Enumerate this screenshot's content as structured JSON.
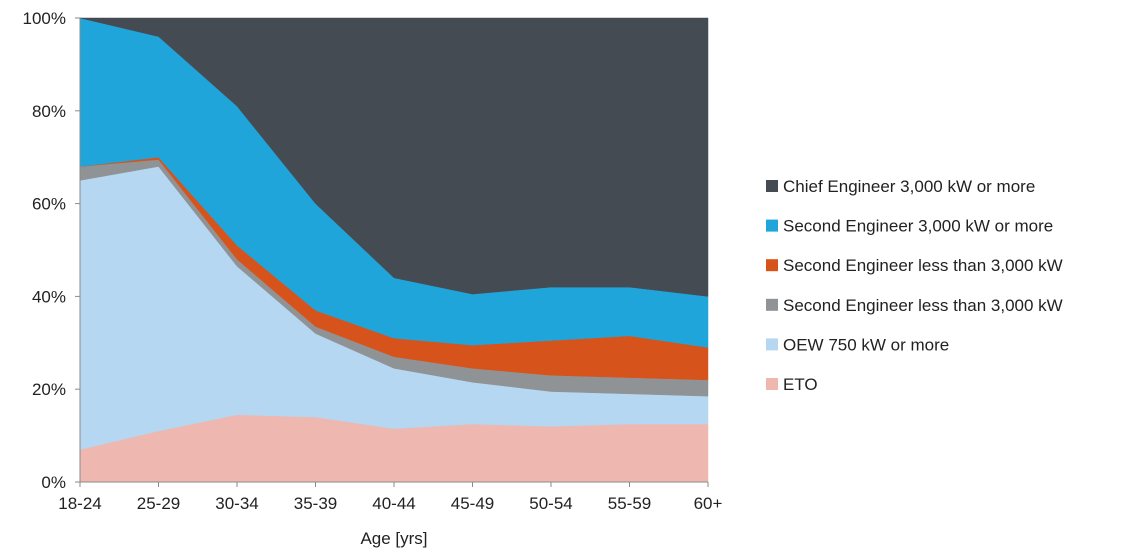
{
  "chart_data": {
    "type": "area",
    "stacked": "percent",
    "title": "",
    "xlabel": "Age [yrs]",
    "ylabel": "",
    "ylim": [
      0,
      100
    ],
    "y_ticks": [
      "0%",
      "20%",
      "40%",
      "60%",
      "80%",
      "100%"
    ],
    "categories": [
      "18-24",
      "25-29",
      "30-34",
      "35-39",
      "40-44",
      "45-49",
      "50-54",
      "55-59",
      "60+"
    ],
    "legend_position": "right",
    "grid": false,
    "series": [
      {
        "name": "ETO",
        "color": "#eeb8b0",
        "values": [
          7,
          11,
          14.5,
          14,
          11.5,
          12.5,
          12,
          12.5,
          12.5
        ]
      },
      {
        "name": "OEW 750 kW or more",
        "color": "#b5d7f1",
        "values": [
          58,
          57,
          32,
          18,
          13,
          9,
          7.5,
          6.5,
          6
        ]
      },
      {
        "name": "Second Engineer less than 3,000 kW",
        "color": "#8f9396",
        "values": [
          3,
          1.5,
          1.5,
          1.5,
          2.5,
          3,
          3.5,
          3.5,
          3.5
        ]
      },
      {
        "name": "Second Engineer less than 3,000 kW",
        "color": "#d6541b",
        "values": [
          0,
          0.5,
          3,
          3.5,
          4,
          5,
          7.5,
          9,
          7
        ]
      },
      {
        "name": "Second Engineer 3,000 kW or more",
        "color": "#1fa5da",
        "values": [
          32,
          26,
          30,
          23,
          13,
          11,
          11.5,
          10.5,
          11
        ]
      },
      {
        "name": "Chief Engineer 3,000 kW or more",
        "color": "#454b52",
        "values": [
          0,
          4,
          19,
          40,
          56,
          59.5,
          58,
          58,
          60
        ]
      }
    ]
  }
}
